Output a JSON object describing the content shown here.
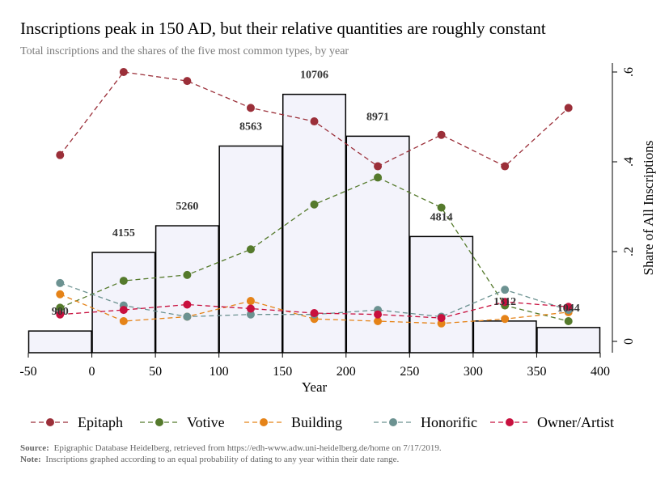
{
  "title": "Inscriptions peak in 150 AD, but their relative quantities are roughly constant",
  "subtitle": "Total inscriptions and the shares of the five most common types, by year",
  "notes": {
    "source_label": "Source:",
    "source_text": "Epigraphic Database Heidelberg, retrieved from https://edh-www.adw.uni-heidelberg.de/home on 7/17/2019.",
    "note_label": "Note:",
    "note_text": "Inscriptions graphed according to an equal probability of dating to any year within their date range."
  },
  "chart_data": {
    "type": "bar",
    "xlabel": "Year",
    "ylabel_right": "Share of All Inscriptions",
    "xlim": [
      -50,
      400
    ],
    "x_ticks": [
      "-50",
      "0",
      "50",
      "100",
      "150",
      "200",
      "250",
      "300",
      "350",
      "400"
    ],
    "y_ticks_right": [
      "0",
      ".2",
      ".4",
      ".6"
    ],
    "ylim_right": [
      0,
      0.6
    ],
    "ylim_bars": [
      0,
      12000
    ],
    "grid": false,
    "legend_position": "bottom",
    "bars": {
      "bin_starts": [
        -50,
        0,
        50,
        100,
        150,
        200,
        250,
        300,
        350
      ],
      "bin_width": 50,
      "values": [
        900,
        4155,
        5260,
        8563,
        10706,
        8971,
        4814,
        1312,
        1044
      ],
      "labels": [
        "900",
        "4155",
        "5260",
        "8563",
        "10706",
        "8971",
        "4814",
        "1312",
        "1044"
      ],
      "fill": "#f3f3fb",
      "stroke": "#000000"
    },
    "x": [
      -25,
      25,
      75,
      125,
      175,
      225,
      275,
      325,
      375
    ],
    "series": [
      {
        "name": "Epitaph",
        "color": "#9b2f39",
        "values": [
          0.415,
          0.6,
          0.58,
          0.52,
          0.49,
          0.39,
          0.46,
          0.39,
          0.52
        ]
      },
      {
        "name": "Votive",
        "color": "#557a2c",
        "values": [
          0.075,
          0.135,
          0.148,
          0.205,
          0.305,
          0.365,
          0.298,
          0.08,
          0.045
        ]
      },
      {
        "name": "Building",
        "color": "#e58318",
        "values": [
          0.105,
          0.045,
          0.055,
          0.09,
          0.05,
          0.045,
          0.04,
          0.05,
          0.065
        ]
      },
      {
        "name": "Honorific",
        "color": "#6c9291",
        "values": [
          0.13,
          0.08,
          0.055,
          0.06,
          0.06,
          0.07,
          0.055,
          0.115,
          0.07
        ]
      },
      {
        "name": "Owner/Artist",
        "color": "#c8103e",
        "values": [
          0.06,
          0.07,
          0.082,
          0.073,
          0.063,
          0.06,
          0.052,
          0.088,
          0.077
        ]
      }
    ]
  }
}
